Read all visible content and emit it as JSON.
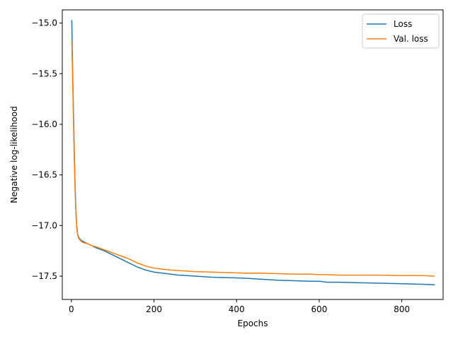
{
  "chart_data": {
    "type": "line",
    "xlabel": "Epochs",
    "ylabel": "Negative log-likelihood",
    "xlim": [
      -22,
      900
    ],
    "ylim": [
      -17.73,
      -14.87
    ],
    "xticks": [
      0,
      200,
      400,
      600,
      800
    ],
    "yticks": [
      -15.0,
      -15.5,
      -16.0,
      -16.5,
      -17.0,
      -17.5
    ],
    "xtick_labels": [
      "0",
      "200",
      "400",
      "600",
      "800"
    ],
    "ytick_labels": [
      "−15.0",
      "−15.5",
      "−16.0",
      "−16.5",
      "−17.0",
      "−17.5"
    ],
    "grid": false,
    "legend_position": "top-right",
    "series": [
      {
        "name": "Loss",
        "color": "#1f77b4",
        "x": [
          1,
          3,
          5,
          7,
          9,
          11,
          13,
          15,
          17,
          20,
          25,
          30,
          40,
          50,
          60,
          80,
          100,
          120,
          140,
          160,
          180,
          200,
          220,
          240,
          260,
          280,
          300,
          340,
          380,
          420,
          460,
          500,
          540,
          580,
          600,
          620,
          650,
          700,
          750,
          800,
          850,
          880
        ],
        "y": [
          -14.97,
          -15.45,
          -15.85,
          -16.25,
          -16.6,
          -16.85,
          -17.0,
          -17.08,
          -17.11,
          -17.13,
          -17.15,
          -17.16,
          -17.18,
          -17.2,
          -17.22,
          -17.25,
          -17.29,
          -17.33,
          -17.37,
          -17.41,
          -17.44,
          -17.46,
          -17.47,
          -17.48,
          -17.49,
          -17.495,
          -17.5,
          -17.51,
          -17.515,
          -17.52,
          -17.53,
          -17.54,
          -17.545,
          -17.55,
          -17.55,
          -17.56,
          -17.56,
          -17.565,
          -17.57,
          -17.575,
          -17.58,
          -17.585
        ]
      },
      {
        "name": "Val. loss",
        "color": "#ff7f0e",
        "x": [
          1,
          3,
          5,
          7,
          9,
          11,
          13,
          15,
          17,
          20,
          25,
          30,
          40,
          50,
          60,
          80,
          100,
          120,
          140,
          160,
          180,
          200,
          220,
          240,
          260,
          280,
          300,
          340,
          380,
          420,
          460,
          500,
          540,
          580,
          600,
          620,
          650,
          700,
          750,
          800,
          850,
          880
        ],
        "y": [
          -15.17,
          -15.55,
          -15.95,
          -16.35,
          -16.65,
          -16.88,
          -17.02,
          -17.09,
          -17.12,
          -17.14,
          -17.16,
          -17.17,
          -17.18,
          -17.2,
          -17.21,
          -17.24,
          -17.27,
          -17.3,
          -17.33,
          -17.37,
          -17.4,
          -17.42,
          -17.43,
          -17.44,
          -17.445,
          -17.45,
          -17.455,
          -17.46,
          -17.465,
          -17.47,
          -17.47,
          -17.475,
          -17.48,
          -17.48,
          -17.485,
          -17.485,
          -17.49,
          -17.49,
          -17.49,
          -17.495,
          -17.495,
          -17.5
        ]
      }
    ]
  }
}
